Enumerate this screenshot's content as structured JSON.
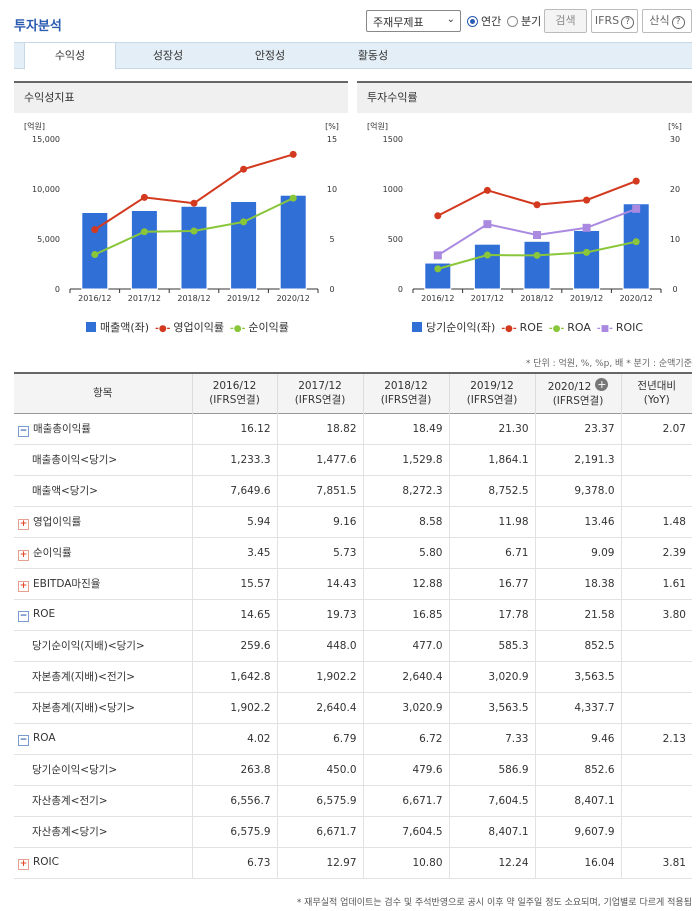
{
  "header": {
    "title": "투자분석",
    "select_value": "주재무제표",
    "radio_annual": "연간",
    "radio_quarter": "분기",
    "search_label": "검색",
    "ifrs_label": "IFRS",
    "formula_label": "산식"
  },
  "tabs": [
    {
      "label": "수익성"
    },
    {
      "label": "성장성"
    },
    {
      "label": "안정성"
    },
    {
      "label": "활동성"
    }
  ],
  "chart_data": [
    {
      "type": "bar",
      "title": "수익성지표",
      "left_unit": "[억원]",
      "right_unit": "[%]",
      "categories": [
        "2016/12",
        "2017/12",
        "2018/12",
        "2019/12",
        "2020/12"
      ],
      "left_ticks": [
        "15,000",
        "10,000",
        "5,000",
        "0"
      ],
      "right_ticks": [
        "15",
        "10",
        "5",
        "0"
      ],
      "ylim_left": [
        0,
        15000
      ],
      "ylim_right": [
        0,
        15
      ],
      "series": [
        {
          "name": "매출액(좌)",
          "axis": "left",
          "kind": "bar",
          "color": "#2f6fd6",
          "values": [
            7649.6,
            7851.5,
            8272.3,
            8752.5,
            9378.0
          ]
        },
        {
          "name": "영업이익률",
          "axis": "right",
          "kind": "line",
          "color": "#d2391e",
          "values": [
            5.94,
            9.16,
            8.58,
            11.98,
            13.46
          ]
        },
        {
          "name": "순이익률",
          "axis": "right",
          "kind": "line",
          "color": "#8ac63a",
          "values": [
            3.45,
            5.73,
            5.8,
            6.71,
            9.09
          ]
        }
      ]
    },
    {
      "type": "bar",
      "title": "투자수익률",
      "left_unit": "[억원]",
      "right_unit": "[%]",
      "categories": [
        "2016/12",
        "2017/12",
        "2018/12",
        "2019/12",
        "2020/12"
      ],
      "left_ticks": [
        "1500",
        "1000",
        "500",
        "0"
      ],
      "right_ticks": [
        "30",
        "20",
        "10",
        "0"
      ],
      "ylim_left": [
        0,
        1500
      ],
      "ylim_right": [
        0,
        30
      ],
      "series": [
        {
          "name": "당기순이익(좌)",
          "axis": "left",
          "kind": "bar",
          "color": "#2f6fd6",
          "values": [
            259.6,
            448.0,
            477.0,
            585.3,
            852.5
          ]
        },
        {
          "name": "ROE",
          "axis": "right",
          "kind": "line",
          "color": "#d2391e",
          "values": [
            14.65,
            19.73,
            16.85,
            17.78,
            21.58
          ]
        },
        {
          "name": "ROA",
          "axis": "right",
          "kind": "line",
          "color": "#8ac63a",
          "values": [
            4.02,
            6.79,
            6.72,
            7.33,
            9.46
          ]
        },
        {
          "name": "ROIC",
          "axis": "right",
          "kind": "line",
          "color": "#a98ae0",
          "values": [
            6.73,
            12.97,
            10.8,
            12.24,
            16.04
          ]
        }
      ]
    }
  ],
  "meta_text": "* 단위 : 억원, %, %p, 배   * 분기 : 순액기준",
  "table": {
    "header_item": "항목",
    "columns": [
      {
        "year": "2016/12",
        "basis": "(IFRS연결)"
      },
      {
        "year": "2017/12",
        "basis": "(IFRS연결)"
      },
      {
        "year": "2018/12",
        "basis": "(IFRS연결)"
      },
      {
        "year": "2019/12",
        "basis": "(IFRS연결)"
      },
      {
        "year": "2020/12",
        "basis": "(IFRS연결)"
      }
    ],
    "yoy_header": "전년대비",
    "yoy_sub": "(YoY)",
    "rows": [
      {
        "label": "매출총이익률",
        "toggle": "minus",
        "values": [
          "16.12",
          "18.82",
          "18.49",
          "21.30",
          "23.37"
        ],
        "yoy": "2.07"
      },
      {
        "label": "매출총이익<당기>",
        "toggle": "",
        "values": [
          "1,233.3",
          "1,477.6",
          "1,529.8",
          "1,864.1",
          "2,191.3"
        ],
        "yoy": ""
      },
      {
        "label": "매출액<당기>",
        "toggle": "",
        "values": [
          "7,649.6",
          "7,851.5",
          "8,272.3",
          "8,752.5",
          "9,378.0"
        ],
        "yoy": ""
      },
      {
        "label": "영업이익률",
        "toggle": "plus",
        "values": [
          "5.94",
          "9.16",
          "8.58",
          "11.98",
          "13.46"
        ],
        "yoy": "1.48"
      },
      {
        "label": "순이익률",
        "toggle": "plus",
        "values": [
          "3.45",
          "5.73",
          "5.80",
          "6.71",
          "9.09"
        ],
        "yoy": "2.39"
      },
      {
        "label": "EBITDA마진율",
        "toggle": "plus",
        "values": [
          "15.57",
          "14.43",
          "12.88",
          "16.77",
          "18.38"
        ],
        "yoy": "1.61"
      },
      {
        "label": "ROE",
        "toggle": "minus",
        "values": [
          "14.65",
          "19.73",
          "16.85",
          "17.78",
          "21.58"
        ],
        "yoy": "3.80"
      },
      {
        "label": "당기순이익(지배)<당기>",
        "toggle": "",
        "values": [
          "259.6",
          "448.0",
          "477.0",
          "585.3",
          "852.5"
        ],
        "yoy": ""
      },
      {
        "label": "자본총계(지배)<전기>",
        "toggle": "",
        "values": [
          "1,642.8",
          "1,902.2",
          "2,640.4",
          "3,020.9",
          "3,563.5"
        ],
        "yoy": ""
      },
      {
        "label": "자본총계(지배)<당기>",
        "toggle": "",
        "values": [
          "1,902.2",
          "2,640.4",
          "3,020.9",
          "3,563.5",
          "4,337.7"
        ],
        "yoy": ""
      },
      {
        "label": "ROA",
        "toggle": "minus",
        "values": [
          "4.02",
          "6.79",
          "6.72",
          "7.33",
          "9.46"
        ],
        "yoy": "2.13"
      },
      {
        "label": "당기순이익<당기>",
        "toggle": "",
        "values": [
          "263.8",
          "450.0",
          "479.6",
          "586.9",
          "852.6"
        ],
        "yoy": ""
      },
      {
        "label": "자산총계<전기>",
        "toggle": "",
        "values": [
          "6,556.7",
          "6,575.9",
          "6,671.7",
          "7,604.5",
          "8,407.1"
        ],
        "yoy": ""
      },
      {
        "label": "자산총계<당기>",
        "toggle": "",
        "values": [
          "6,575.9",
          "6,671.7",
          "7,604.5",
          "8,407.1",
          "9,607.9"
        ],
        "yoy": ""
      },
      {
        "label": "ROIC",
        "toggle": "plus",
        "values": [
          "6.73",
          "12.97",
          "10.80",
          "12.24",
          "16.04"
        ],
        "yoy": "3.81"
      }
    ]
  },
  "footnote": "* 재무실적 업데이트는 검수 및 주석반영으로 공시 이후 약 일주일 정도 소요되며, 기업별로 다르게 적용됩"
}
